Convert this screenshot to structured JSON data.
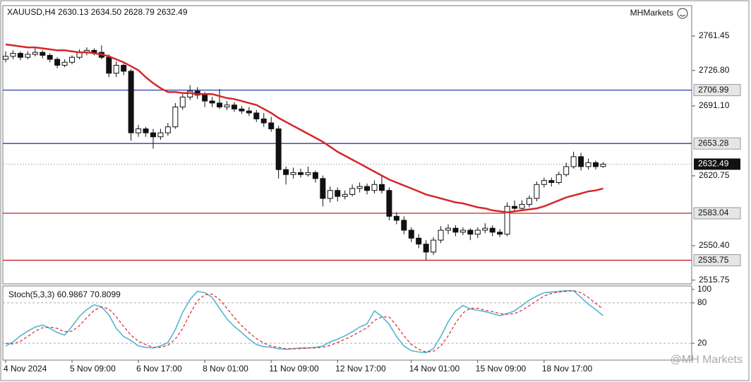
{
  "brand": "MHMarkets",
  "watermark": "@MH Markets",
  "chart_data": [
    {
      "type": "candlestick",
      "title": "XAUUSD,H4 2630.13 2634.50 2628.79 2632.49",
      "categories": [
        "4 Nov 2024",
        null,
        null,
        null,
        null,
        null,
        null,
        null,
        null,
        "5 Nov 09:00",
        null,
        null,
        null,
        null,
        null,
        null,
        null,
        null,
        "6 Nov 17:00",
        null,
        null,
        null,
        null,
        null,
        null,
        null,
        null,
        "8 Nov 01:00",
        null,
        null,
        null,
        null,
        null,
        null,
        null,
        null,
        "11 Nov 09:00",
        null,
        null,
        null,
        null,
        null,
        null,
        null,
        null,
        "12 Nov 17:00",
        null,
        null,
        null,
        null,
        null,
        null,
        null,
        null,
        null,
        "14 Nov 01:00",
        null,
        null,
        null,
        null,
        null,
        null,
        null,
        null,
        "15 Nov 09:00",
        null,
        null,
        null,
        null,
        null,
        null,
        null,
        null,
        "18 Nov 17:00",
        null,
        null,
        null,
        null,
        null,
        null,
        null,
        null
      ],
      "ohlc": [
        [
          2738,
          2746,
          2735,
          2741
        ],
        [
          2741,
          2747,
          2738,
          2744
        ],
        [
          2744,
          2746,
          2737,
          2740
        ],
        [
          2740,
          2746,
          2738,
          2743
        ],
        [
          2743,
          2749,
          2741,
          2745
        ],
        [
          2745,
          2747,
          2739,
          2742
        ],
        [
          2742,
          2744,
          2735,
          2738
        ],
        [
          2738,
          2740,
          2729,
          2732
        ],
        [
          2732,
          2738,
          2730,
          2735
        ],
        [
          2735,
          2742,
          2733,
          2740
        ],
        [
          2740,
          2748,
          2738,
          2745
        ],
        [
          2745,
          2750,
          2742,
          2747
        ],
        [
          2747,
          2749,
          2742,
          2745
        ],
        [
          2745,
          2752,
          2738,
          2740
        ],
        [
          2740,
          2743,
          2720,
          2724
        ],
        [
          2724,
          2736,
          2720,
          2732
        ],
        [
          2732,
          2734,
          2722,
          2726
        ],
        [
          2726,
          2728,
          2656,
          2664
        ],
        [
          2664,
          2672,
          2660,
          2668
        ],
        [
          2668,
          2670,
          2660,
          2664
        ],
        [
          2664,
          2668,
          2648,
          2660
        ],
        [
          2660,
          2668,
          2657,
          2664
        ],
        [
          2664,
          2674,
          2661,
          2670
        ],
        [
          2670,
          2694,
          2668,
          2690
        ],
        [
          2690,
          2703,
          2687,
          2700
        ],
        [
          2700,
          2712,
          2697,
          2706
        ],
        [
          2706,
          2710,
          2698,
          2702
        ],
        [
          2702,
          2705,
          2690,
          2696
        ],
        [
          2696,
          2700,
          2690,
          2694
        ],
        [
          2694,
          2708,
          2688,
          2690
        ],
        [
          2690,
          2696,
          2687,
          2692
        ],
        [
          2692,
          2695,
          2685,
          2688
        ],
        [
          2688,
          2691,
          2683,
          2686
        ],
        [
          2686,
          2690,
          2681,
          2684
        ],
        [
          2684,
          2687,
          2675,
          2678
        ],
        [
          2678,
          2684,
          2670,
          2674
        ],
        [
          2674,
          2680,
          2665,
          2668
        ],
        [
          2668,
          2671,
          2618,
          2627
        ],
        [
          2627,
          2630,
          2612,
          2622
        ],
        [
          2622,
          2629,
          2618,
          2624
        ],
        [
          2624,
          2628,
          2619,
          2622
        ],
        [
          2622,
          2630,
          2620,
          2624
        ],
        [
          2624,
          2626,
          2614,
          2618
        ],
        [
          2618,
          2621,
          2590,
          2598
        ],
        [
          2598,
          2610,
          2594,
          2606
        ],
        [
          2606,
          2609,
          2595,
          2600
        ],
        [
          2600,
          2606,
          2597,
          2602
        ],
        [
          2602,
          2612,
          2600,
          2608
        ],
        [
          2608,
          2614,
          2604,
          2610
        ],
        [
          2610,
          2613,
          2602,
          2606
        ],
        [
          2606,
          2616,
          2603,
          2612
        ],
        [
          2612,
          2620,
          2603,
          2606
        ],
        [
          2606,
          2609,
          2576,
          2580
        ],
        [
          2580,
          2584,
          2572,
          2576
        ],
        [
          2576,
          2580,
          2562,
          2566
        ],
        [
          2566,
          2569,
          2554,
          2558
        ],
        [
          2558,
          2562,
          2548,
          2552
        ],
        [
          2552,
          2556,
          2536,
          2544
        ],
        [
          2544,
          2559,
          2541,
          2556
        ],
        [
          2556,
          2570,
          2553,
          2566
        ],
        [
          2566,
          2572,
          2562,
          2568
        ],
        [
          2568,
          2571,
          2560,
          2564
        ],
        [
          2564,
          2569,
          2561,
          2566
        ],
        [
          2566,
          2568,
          2556,
          2562
        ],
        [
          2562,
          2569,
          2558,
          2566
        ],
        [
          2566,
          2573,
          2563,
          2568
        ],
        [
          2568,
          2571,
          2560,
          2564
        ],
        [
          2564,
          2567,
          2559,
          2562
        ],
        [
          2562,
          2594,
          2560,
          2590
        ],
        [
          2590,
          2596,
          2585,
          2588
        ],
        [
          2588,
          2596,
          2586,
          2592
        ],
        [
          2592,
          2601,
          2589,
          2598
        ],
        [
          2598,
          2615,
          2595,
          2612
        ],
        [
          2612,
          2619,
          2609,
          2616
        ],
        [
          2616,
          2619,
          2610,
          2614
        ],
        [
          2614,
          2625,
          2612,
          2622
        ],
        [
          2622,
          2634,
          2620,
          2630
        ],
        [
          2630,
          2645,
          2628,
          2640
        ],
        [
          2640,
          2644,
          2626,
          2630
        ],
        [
          2630,
          2638,
          2627,
          2634
        ],
        [
          2634,
          2636,
          2627,
          2630
        ],
        [
          2630.13,
          2634.5,
          2628.79,
          2632.49
        ]
      ],
      "ma": {
        "color": "#d62728",
        "values": [
          2753,
          2752,
          2751,
          2750,
          2750,
          2749,
          2748,
          2747,
          2747,
          2746,
          2745,
          2745,
          2744,
          2743,
          2741,
          2738,
          2735,
          2731,
          2727,
          2720,
          2714,
          2709,
          2705,
          2705,
          2704,
          2704,
          2703,
          2703,
          2703,
          2701,
          2699,
          2698,
          2696,
          2694,
          2692,
          2688,
          2684,
          2679,
          2675,
          2671,
          2667,
          2663,
          2659,
          2655,
          2650,
          2645,
          2641,
          2637,
          2633,
          2629,
          2625,
          2621,
          2617,
          2614,
          2611,
          2608,
          2605,
          2602,
          2600,
          2598,
          2596,
          2594,
          2593,
          2591,
          2589,
          2588,
          2586,
          2585,
          2584,
          2585,
          2586,
          2587,
          2588,
          2590,
          2593,
          2596,
          2599,
          2601,
          2603,
          2605,
          2606,
          2608
        ]
      },
      "levels": [
        {
          "value": 2706.99,
          "color": "#2d3ea8"
        },
        {
          "value": 2653.28,
          "color": "#2d3ea8"
        },
        {
          "value": 2583.04,
          "color": "#c8202a"
        },
        {
          "value": 2535.75,
          "color": "#c8202a"
        }
      ],
      "last_price": 2632.49,
      "ylim": [
        2512,
        2792
      ],
      "yticks": [
        2761.45,
        {
          "value": 2726.8,
          "label": "2726.80"
        },
        {
          "value": 2691.1,
          "label": "2691.10"
        },
        2620.75,
        {
          "value": 2550.4,
          "label": "2550.40"
        },
        2515.75
      ]
    },
    {
      "type": "stochastic",
      "title": "Stoch(5,3,3) 60.9867 70.8099",
      "ylim": [
        -5,
        105
      ],
      "yticks": [
        20,
        80,
        100
      ],
      "levels": [
        20,
        80
      ],
      "series": [
        {
          "color": "#56b4d3",
          "values": [
            16,
            22,
            31,
            38,
            44,
            47,
            42,
            36,
            32,
            45,
            60,
            70,
            77,
            74,
            62,
            42,
            30,
            24,
            16,
            14,
            13,
            16,
            21,
            40,
            66,
            85,
            97,
            95,
            88,
            72,
            56,
            45,
            36,
            26,
            18,
            15,
            14,
            12,
            11,
            12,
            13,
            13,
            14,
            16,
            22,
            26,
            31,
            37,
            44,
            49,
            68,
            60,
            48,
            30,
            16,
            9,
            7,
            6,
            12,
            30,
            52,
            68,
            76,
            71,
            69,
            67,
            64,
            61,
            64,
            68,
            76,
            84,
            90,
            95,
            96,
            97,
            98,
            98,
            88,
            78,
            70,
            60.9867
          ]
        },
        {
          "color": "#d62728",
          "values": [
            20,
            19,
            23,
            30,
            38,
            43,
            44,
            42,
            37,
            38,
            46,
            58,
            69,
            74,
            71,
            59,
            45,
            32,
            23,
            18,
            14,
            14,
            17,
            26,
            42,
            64,
            83,
            92,
            93,
            85,
            72,
            58,
            46,
            36,
            27,
            20,
            16,
            14,
            12,
            12,
            12,
            13,
            13,
            14,
            17,
            21,
            26,
            31,
            37,
            43,
            54,
            59,
            59,
            46,
            31,
            18,
            11,
            7,
            8,
            16,
            31,
            50,
            65,
            72,
            72,
            69,
            67,
            64,
            63,
            64,
            69,
            76,
            83,
            90,
            94,
            96,
            97,
            98,
            95,
            88,
            79,
            70.8099
          ]
        }
      ]
    }
  ]
}
